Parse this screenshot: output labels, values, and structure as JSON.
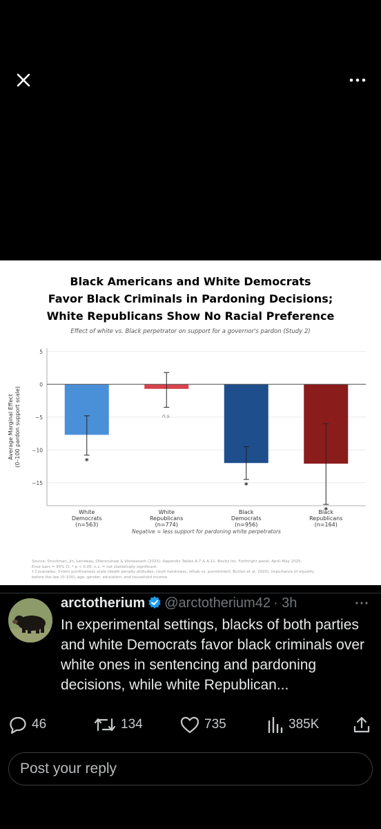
{
  "topbar": {
    "close_icon": "close-icon",
    "more_icon": "more-horizontal-icon"
  },
  "chart": {
    "title_lines": [
      "Black Americans and White Democrats",
      "Favor Black Criminals in Pardoning Decisions;",
      "White Republicans Show No Racial Preference"
    ],
    "subtitle": "Effect of white vs. Black perpetrator on support for a governor's pardon (Study 2)",
    "note": "Negative = less support for pardoning white perpetrators",
    "source_lines": [
      "Source: Druckman, Jin, Lendway, Ollerenshaw & Vishwanath (2025). Appendix Tables A-7 & A-11. Bovitz Inc. Forthright panel, April–May 2025.",
      "Error bars = 95% CI.  * p < 0.05; n.s. = not statistically significant.",
      "† Covariates: 3-item punitiveness scale (death penalty attitudes, court harshness, rehab vs. punishment; Burton et al. 2020), importance of equality",
      "  before the law (0–100), age, gender, education, and household income."
    ]
  },
  "chart_data": {
    "type": "bar",
    "title": "Black Americans and White Democrats Favor Black Criminals in Pardoning Decisions; White Republicans Show No Racial Preference",
    "subtitle": "Effect of white vs. Black perpetrator on support for a governor's pardon (Study 2)",
    "ylabel": "Average Marginal Effect (0–100 pardon support scale)",
    "ylim": [
      -18.5,
      5.5
    ],
    "yticks": [
      5,
      0,
      -5,
      -10,
      -15
    ],
    "grid": true,
    "categories": [
      "White Democrats (n=563)",
      "White Republicans (n=774)",
      "Black Democrats (n=956)",
      "Black Republicans (n=164)"
    ],
    "category_lines": [
      [
        "White",
        "Democrats",
        "(n=563)"
      ],
      [
        "White",
        "Republicans",
        "(n=774)"
      ],
      [
        "Black",
        "Democrats",
        "(n=956)"
      ],
      [
        "Black",
        "Republicans",
        "(n=164)"
      ]
    ],
    "values": [
      -7.7,
      -0.7,
      -12.0,
      -12.1
    ],
    "ci_low": [
      -10.8,
      -3.5,
      -14.5,
      -18.3
    ],
    "ci_high": [
      -4.8,
      1.8,
      -9.5,
      -6.0
    ],
    "annotations": [
      "*",
      "n.s.",
      "*",
      "*"
    ],
    "colors": [
      "#4a90d9",
      "#d9434b",
      "#1f4e8c",
      "#8b1c1c"
    ]
  },
  "tweet": {
    "name": "arctotherium",
    "handle": "@arctotherium42",
    "time": "· 3h",
    "text": "In experimental settings, blacks of both parties and white Democrats favor black criminals over white ones in sentencing and pardoning decisions, while white Republican...",
    "replies": "46",
    "retweets": "134",
    "likes": "735",
    "views": "385K",
    "reply_placeholder": "Post your reply"
  }
}
